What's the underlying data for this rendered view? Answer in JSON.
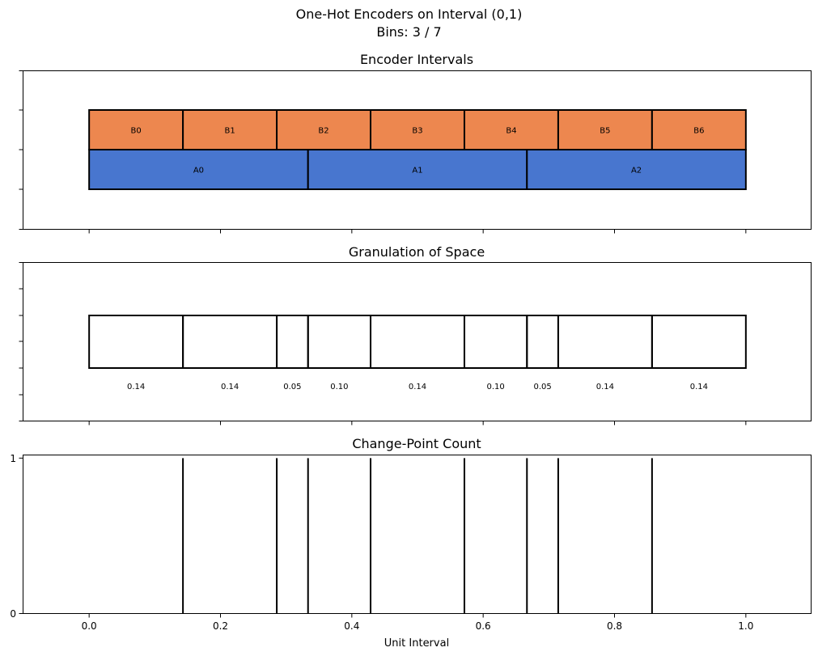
{
  "figure": {
    "title": "One-Hot Encoders on Interval (0,1)",
    "subtitle": "Bins: 3 / 7"
  },
  "chart_data": [
    {
      "type": "bar",
      "title": "Encoder Intervals",
      "xlim": [
        -0.1,
        1.1
      ],
      "ylim": [
        0,
        4
      ],
      "grid": false,
      "rows": [
        {
          "color": "#ed874f",
          "labels": [
            "B0",
            "B1",
            "B2",
            "B3",
            "B4",
            "B5",
            "B6"
          ],
          "bounds": [
            0,
            0.142857,
            0.285714,
            0.428571,
            0.571429,
            0.714286,
            0.857143,
            1.0
          ]
        },
        {
          "color": "#4876cf",
          "labels": [
            "A0",
            "A1",
            "A2"
          ],
          "bounds": [
            0,
            0.333333,
            0.666667,
            1.0
          ]
        }
      ]
    },
    {
      "type": "bar",
      "title": "Granulation of Space",
      "xlim": [
        -0.1,
        1.1
      ],
      "grid": false,
      "bounds": [
        0,
        0.142857,
        0.285714,
        0.333333,
        0.428571,
        0.571429,
        0.666667,
        0.714286,
        0.857143,
        1.0
      ],
      "width_labels": [
        "0.14",
        "0.14",
        "0.05",
        "0.10",
        "0.14",
        "0.10",
        "0.05",
        "0.14",
        "0.14"
      ]
    },
    {
      "type": "bar",
      "title": "Change-Point Count",
      "xlabel": "Unit Interval",
      "xlim": [
        -0.1,
        1.1
      ],
      "ylim": [
        0,
        1.02
      ],
      "grid": false,
      "x": [
        0.142857,
        0.285714,
        0.333333,
        0.428571,
        0.571429,
        0.666667,
        0.714286,
        0.857143
      ],
      "values": [
        1,
        1,
        1,
        1,
        1,
        1,
        1,
        1
      ],
      "x_ticks": [
        "0.0",
        "0.2",
        "0.4",
        "0.6",
        "0.8",
        "1.0"
      ],
      "y_ticks": [
        "0",
        "1"
      ]
    }
  ]
}
